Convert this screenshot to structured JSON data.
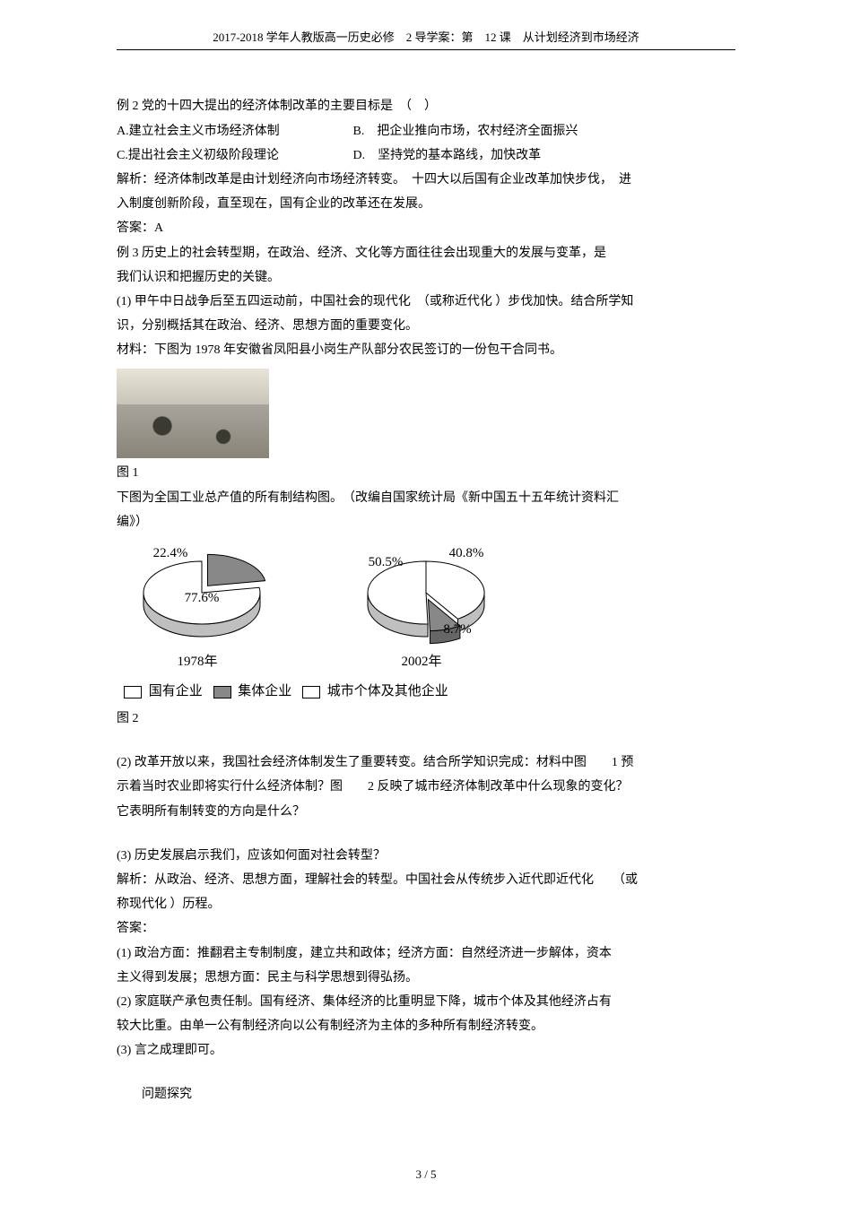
{
  "header": "2017-2018 学年人教版高一历史必修　2 导学案：第　12 课　从计划经济到市场经济",
  "ex2": {
    "stem": "例 2 党的十四大提出的经济体制改革的主要目标是　（　）",
    "optA": "A.建立社会主义市场经济体制",
    "optB": "B.　把企业推向市场，农村经济全面振兴",
    "optC": "C.提出社会主义初级阶段理论",
    "optD": "D.　坚持党的基本路线，加快改革",
    "exp1": "解析：经济体制改革是由计划经济向市场经济转变。　十四大以后国有企业改革加快步伐，　进",
    "exp2": "入制度创新阶段，直至现在，国有企业的改革还在发展。",
    "ans": "答案：A"
  },
  "ex3": {
    "stem1": "例 3 历史上的社会转型期，在政治、经济、文化等方面往往会出现重大的发展与变革，是",
    "stem2": "我们认识和把握历史的关键。",
    "q1a": "(1) 甲午中日战争后至五四运动前，中国社会的现代化　（或称近代化 ）步伐加快。结合所学知",
    "q1b": "识，分别概括其在政治、经济、思想方面的重要变化。",
    "mat": "材料：下图为 1978 年安徽省凤阳县小岗生产队部分农民签订的一份包干合同书。",
    "fig1": "图 1",
    "fig2intro1": "下图为全国工业总产值的所有制结构图。　（改编自国家统计局《新中国五十五年统计资料汇",
    "fig2intro2": "编》）",
    "chart": {
      "pie1978": {
        "state": 77.6,
        "state_label": "77.6%",
        "coll": 22.4,
        "coll_label": "22.4%",
        "year": "1978年"
      },
      "pie2002": {
        "state": 40.8,
        "state_label": "40.8%",
        "coll": 8.7,
        "coll_label": "8.7%",
        "other": 50.5,
        "other_label": "50.5%",
        "year": "2002年"
      },
      "legend": {
        "state": "国有企业",
        "coll": "集体企业",
        "other": "城市个体及其他企业"
      },
      "colors": {
        "state": "#ffffff",
        "coll": "#888888",
        "other": "#ffffff",
        "stroke": "#000000",
        "side": "#bfbfbf"
      }
    },
    "fig2": "图 2",
    "q2a": "(2) 改革开放以来，我国社会经济体制发生了重要转变。结合所学知识完成：材料中图　　1 预",
    "q2b": "示着当时农业即将实行什么经济体制？图　　2 反映了城市经济体制改革中什么现象的变化？",
    "q2c": "它表明所有制转变的方向是什么？",
    "q3": "(3) 历史发展启示我们，应该如何面对社会转型？",
    "exp1": "解析：从政治、经济、思想方面，理解社会的转型。中国社会从传统步入近代即近代化　　（或",
    "exp2": "称现代化 ）历程。",
    "ans": "答案：",
    "a1a": "(1) 政治方面：推翻君主专制制度，建立共和政体；经济方面：自然经济进一步解体，资本",
    "a1b": "主义得到发展；思想方面：民主与科学思想到得弘扬。",
    "a2a": "(2) 家庭联产承包责任制。国有经济、集体经济的比重明显下降，城市个体及其他经济占有",
    "a2b": "较大比重。由单一公有制经济向以公有制经济为主体的多种所有制经济转变。",
    "a3": "(3) 言之成理即可。"
  },
  "section": "问题探究",
  "pageno": "3 / 5"
}
